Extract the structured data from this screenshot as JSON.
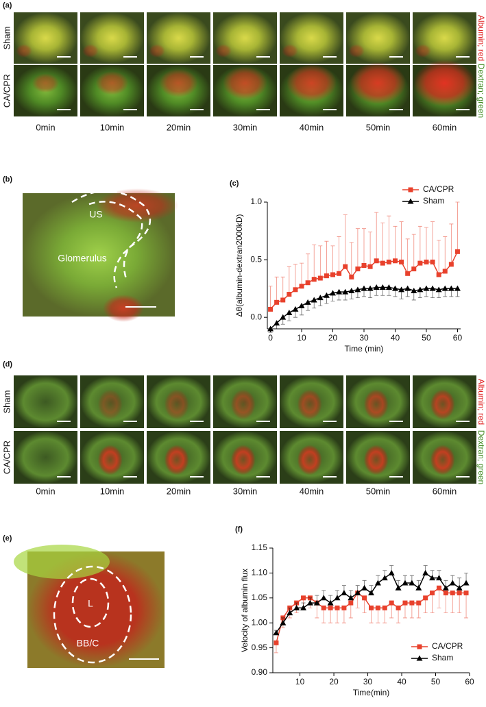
{
  "panel_a": {
    "label": "(a)",
    "rows": [
      "Sham",
      "CA/CPR"
    ],
    "times": [
      "0min",
      "10min",
      "20min",
      "30min",
      "40min",
      "50min",
      "60min"
    ],
    "side_labels": [
      "Albumin; red",
      "Dextran; green"
    ]
  },
  "panel_b": {
    "label": "(b)",
    "annotations": [
      "US",
      "Glomerulus"
    ]
  },
  "panel_d": {
    "label": "(d)",
    "rows": [
      "Sham",
      "CA/CPR"
    ],
    "times": [
      "0min",
      "10min",
      "20min",
      "30min",
      "40min",
      "50min",
      "60min"
    ],
    "side_labels": [
      "Albumin; red",
      "Dextran; green"
    ]
  },
  "panel_e": {
    "label": "(e)",
    "annotations": [
      "L",
      "BB/C"
    ]
  },
  "chart_data": [
    {
      "type": "line",
      "label": "(c)",
      "ylabel": "Δθ(albumin-dextran2000kD)",
      "xlabel": "Time (min)",
      "x": [
        0,
        2,
        4,
        6,
        8,
        10,
        12,
        14,
        16,
        18,
        20,
        22,
        24,
        26,
        28,
        30,
        32,
        34,
        36,
        38,
        40,
        42,
        44,
        46,
        48,
        50,
        52,
        54,
        56,
        58,
        60
      ],
      "xlim": [
        -1,
        61
      ],
      "xticks": [
        0,
        10,
        20,
        30,
        40,
        50,
        60
      ],
      "ylim": [
        -0.1,
        1.0
      ],
      "yticks": [
        {
          "value": 0,
          "label": "0.0"
        },
        0.5,
        {
          "value": 1,
          "label": "1.0"
        }
      ],
      "legend": "upper right",
      "series": [
        {
          "name": "CA/CPR",
          "color": "#e8412c",
          "marker": "square",
          "error_direction": "up",
          "values": [
            0.07,
            0.13,
            0.15,
            0.2,
            0.24,
            0.27,
            0.3,
            0.33,
            0.34,
            0.36,
            0.37,
            0.38,
            0.44,
            0.35,
            0.42,
            0.45,
            0.44,
            0.49,
            0.47,
            0.48,
            0.49,
            0.48,
            0.38,
            0.42,
            0.47,
            0.48,
            0.48,
            0.37,
            0.4,
            0.46,
            0.57
          ],
          "errors": [
            0.2,
            0.22,
            0.2,
            0.24,
            0.22,
            0.2,
            0.25,
            0.3,
            0.28,
            0.3,
            0.25,
            0.32,
            0.45,
            0.3,
            0.35,
            0.32,
            0.3,
            0.42,
            0.35,
            0.4,
            0.3,
            0.35,
            0.3,
            0.3,
            0.32,
            0.3,
            0.35,
            0.3,
            0.3,
            0.35,
            0.43
          ]
        },
        {
          "name": "Sham",
          "color": "#000000",
          "marker": "triangle",
          "error_direction": "down",
          "values": [
            -0.1,
            -0.05,
            0,
            0.04,
            0.07,
            0.1,
            0.13,
            0.15,
            0.17,
            0.19,
            0.21,
            0.22,
            0.22,
            0.23,
            0.24,
            0.25,
            0.25,
            0.26,
            0.26,
            0.26,
            0.25,
            0.24,
            0.25,
            0.23,
            0.24,
            0.25,
            0.25,
            0.24,
            0.25,
            0.25,
            0.25
          ],
          "errors": [
            0.03,
            0.05,
            0.06,
            0.07,
            0.07,
            0.08,
            0.07,
            0.07,
            0.07,
            0.07,
            0.07,
            0.07,
            0.07,
            0.07,
            0.07,
            0.07,
            0.08,
            0.07,
            0.07,
            0.07,
            0.07,
            0.08,
            0.07,
            0.08,
            0.07,
            0.07,
            0.08,
            0.07,
            0.07,
            0.07,
            0.07
          ]
        }
      ]
    },
    {
      "type": "line",
      "label": "(f)",
      "ylabel": "Velocity of albumin flux",
      "xlabel": "Time(min)",
      "x": [
        3,
        5,
        7,
        9,
        11,
        13,
        15,
        17,
        19,
        21,
        23,
        25,
        27,
        29,
        31,
        33,
        35,
        37,
        39,
        41,
        43,
        45,
        47,
        49,
        51,
        53,
        55,
        57,
        59
      ],
      "xlim": [
        2,
        60
      ],
      "xticks": [
        10,
        20,
        30,
        40,
        50,
        60
      ],
      "ylim": [
        0.9,
        1.15
      ],
      "yticks": [
        {
          "value": 0.9,
          "label": "0.90"
        },
        0.95,
        {
          "value": 1,
          "label": "1.00"
        },
        1.05,
        {
          "value": 1.1,
          "label": "1.10"
        },
        1.15
      ],
      "legend": "lower right",
      "series": [
        {
          "name": "CA/CPR",
          "color": "#e8412c",
          "marker": "square",
          "error_direction": "down",
          "values": [
            0.96,
            1.01,
            1.03,
            1.04,
            1.05,
            1.05,
            1.04,
            1.03,
            1.03,
            1.03,
            1.03,
            1.04,
            1.06,
            1.05,
            1.03,
            1.03,
            1.03,
            1.04,
            1.03,
            1.04,
            1.04,
            1.04,
            1.05,
            1.06,
            1.07,
            1.06,
            1.06,
            1.06,
            1.06
          ],
          "errors": [
            0.02,
            0.02,
            0.02,
            0.02,
            0.02,
            0.02,
            0.03,
            0.03,
            0.03,
            0.03,
            0.03,
            0.03,
            0.03,
            0.03,
            0.03,
            0.03,
            0.03,
            0.03,
            0.03,
            0.03,
            0.03,
            0.03,
            0.03,
            0.04,
            0.04,
            0.04,
            0.04,
            0.04,
            0.05
          ]
        },
        {
          "name": "Sham",
          "color": "#000000",
          "marker": "triangle",
          "error_direction": "up",
          "values": [
            0.98,
            1.0,
            1.02,
            1.03,
            1.03,
            1.04,
            1.04,
            1.05,
            1.04,
            1.05,
            1.06,
            1.05,
            1.06,
            1.07,
            1.06,
            1.08,
            1.09,
            1.1,
            1.07,
            1.08,
            1.08,
            1.07,
            1.1,
            1.09,
            1.09,
            1.07,
            1.08,
            1.07,
            1.08
          ],
          "errors": [
            0.005,
            0.01,
            0.01,
            0.01,
            0.01,
            0.01,
            0.015,
            0.015,
            0.015,
            0.015,
            0.015,
            0.015,
            0.015,
            0.015,
            0.015,
            0.015,
            0.015,
            0.015,
            0.015,
            0.015,
            0.015,
            0.015,
            0.015,
            0.015,
            0.015,
            0.015,
            0.015,
            0.02,
            0.02
          ]
        }
      ]
    }
  ]
}
